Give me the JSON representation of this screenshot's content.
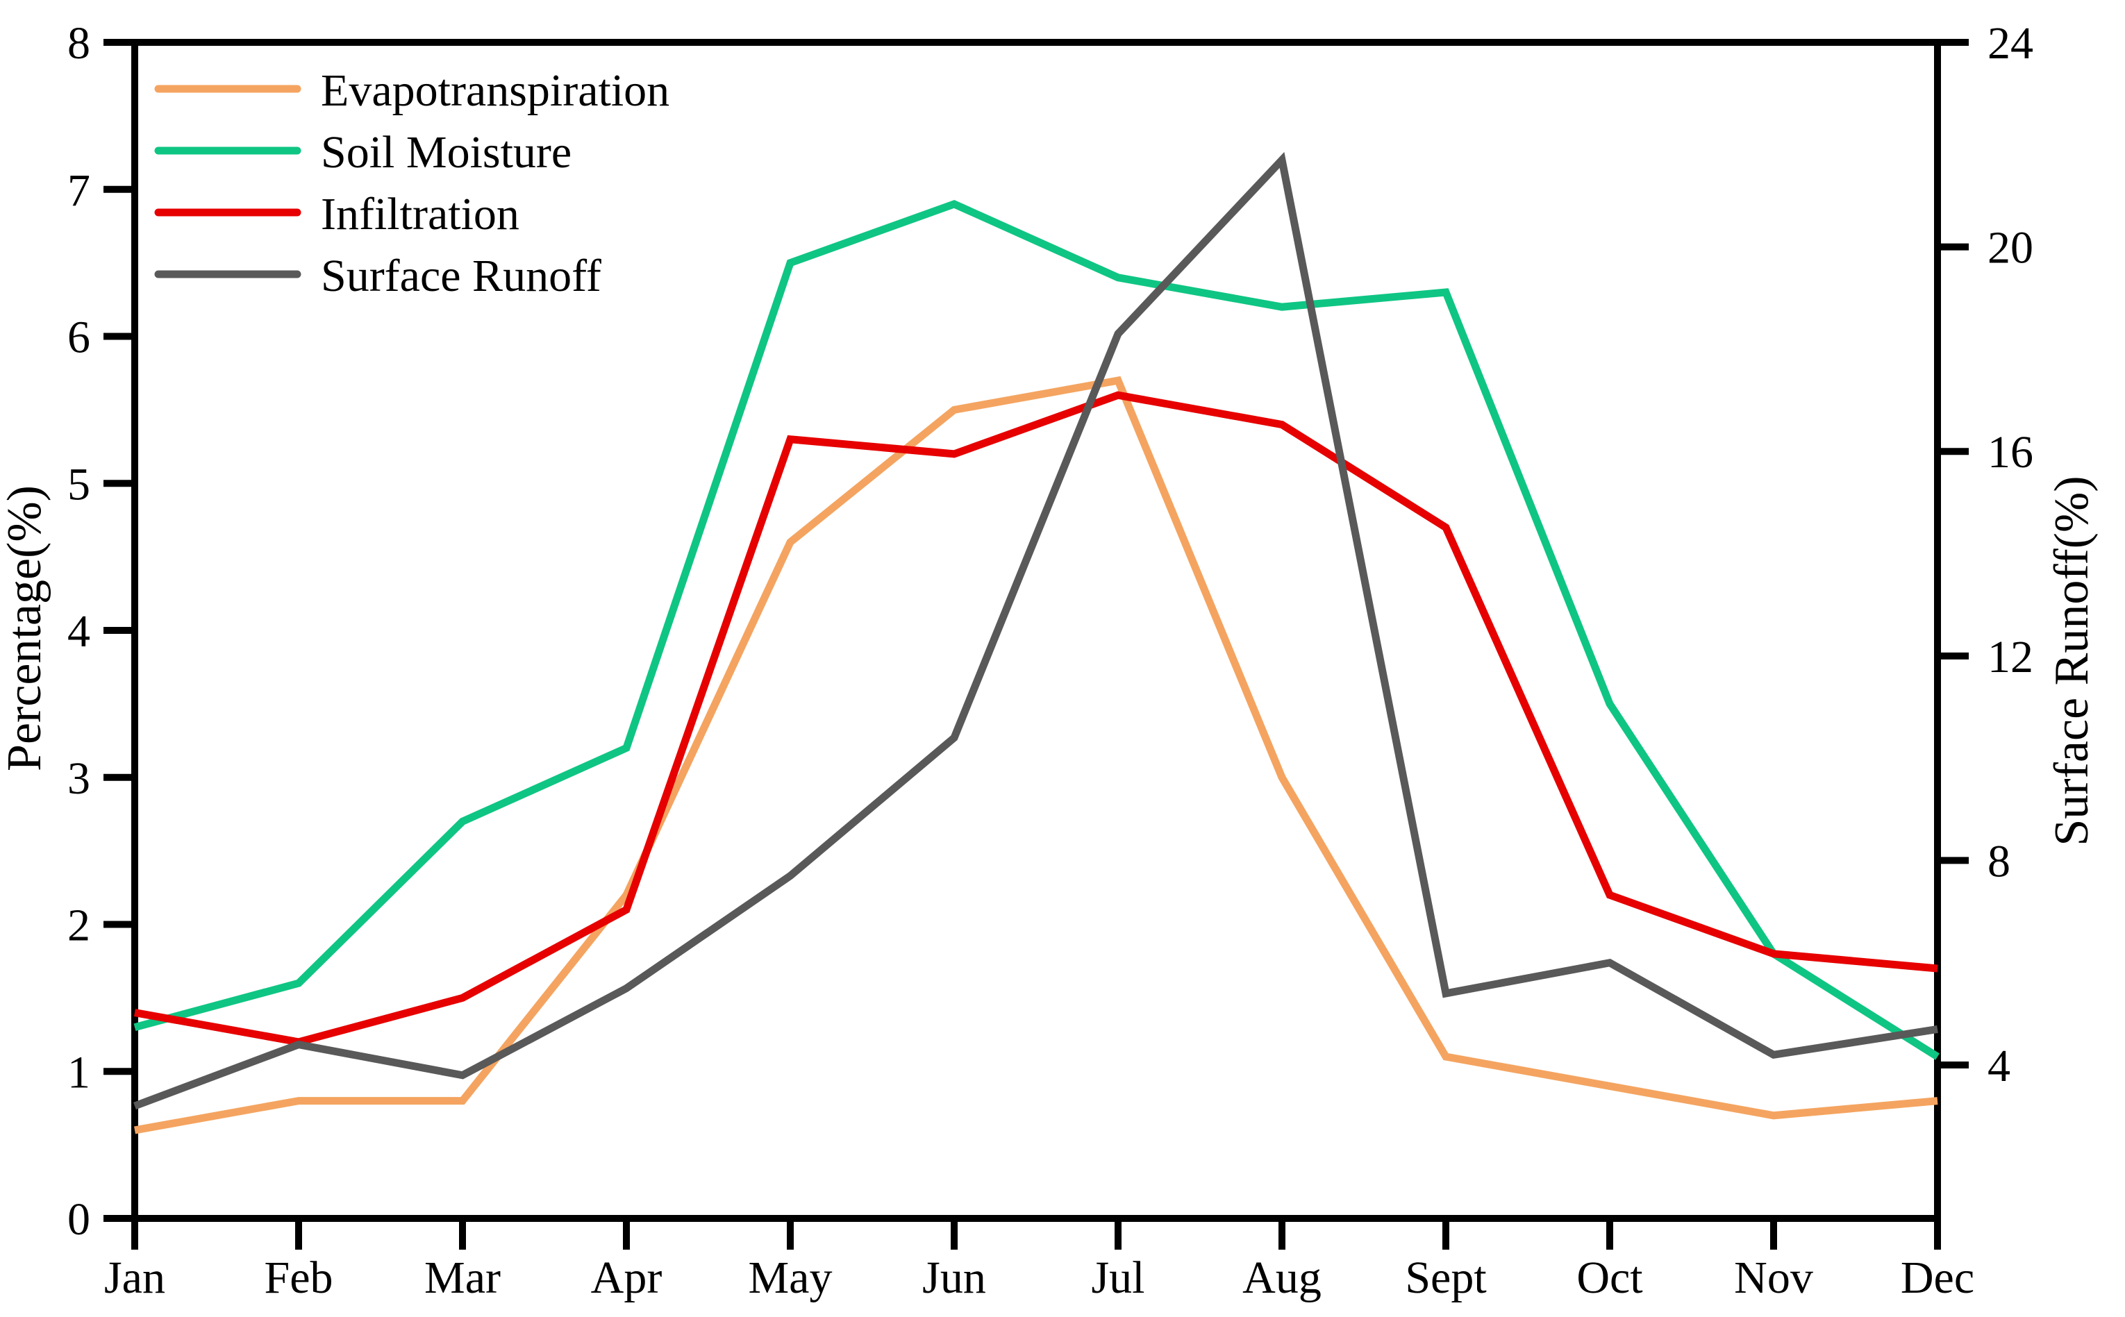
{
  "chart_data": {
    "type": "line",
    "title": "",
    "x_categories": [
      "Jan",
      "Feb",
      "Mar",
      "Apr",
      "May",
      "Jun",
      "Jul",
      "Aug",
      "Sept",
      "Oct",
      "Nov",
      "Dec"
    ],
    "left_axis": {
      "label": "Percentage(%)",
      "min": 0,
      "max": 8,
      "ticks": [
        0,
        1,
        2,
        3,
        4,
        5,
        6,
        7,
        8
      ]
    },
    "right_axis": {
      "label": "Surface Runoff(%)",
      "min": 1,
      "max": 24,
      "ticks": [
        4,
        8,
        12,
        16,
        20,
        24
      ]
    },
    "grid": false,
    "legend_position": "upper-left",
    "series": [
      {
        "name": "Evapotranspiration",
        "color": "#F4A460",
        "axis": "left",
        "values": [
          0.6,
          0.8,
          0.8,
          2.2,
          4.6,
          5.5,
          5.7,
          3.0,
          1.1,
          0.9,
          0.7,
          0.8
        ]
      },
      {
        "name": "Soil Moisture",
        "color": "#0FC584",
        "axis": "left",
        "values": [
          1.3,
          1.6,
          2.7,
          3.2,
          6.5,
          6.9,
          6.4,
          6.2,
          6.3,
          3.5,
          1.8,
          1.1
        ]
      },
      {
        "name": "Infiltration",
        "color": "#E60000",
        "axis": "left",
        "values": [
          1.4,
          1.2,
          1.5,
          2.1,
          5.3,
          5.2,
          5.6,
          5.4,
          4.7,
          2.2,
          1.8,
          1.7
        ]
      },
      {
        "name": "Surface Runoff",
        "color": "#595959",
        "axis": "right",
        "values": [
          3.2,
          4.4,
          3.8,
          5.5,
          7.7,
          10.4,
          18.3,
          21.7,
          5.4,
          6.0,
          4.2,
          4.7
        ]
      }
    ],
    "axis_color": "#000000"
  }
}
